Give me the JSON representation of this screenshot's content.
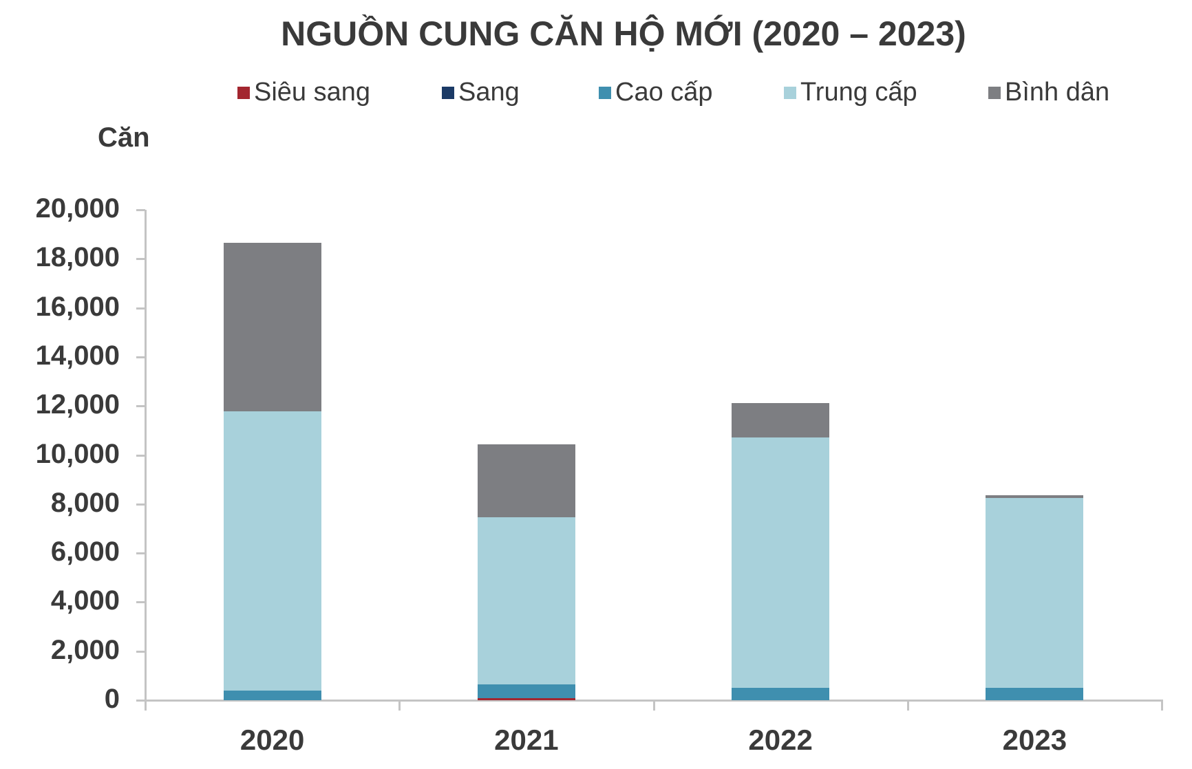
{
  "chart_data": {
    "type": "bar",
    "stacked": true,
    "title": "NGUỒN CUNG CĂN HỘ MỚI (2020 – 2023)",
    "ylabel": "Căn",
    "xlabel": "",
    "categories": [
      "2020",
      "2021",
      "2022",
      "2023"
    ],
    "series": [
      {
        "name": "Siêu sang",
        "color": "#a3262f",
        "values": [
          0,
          80,
          0,
          0
        ]
      },
      {
        "name": "Sang",
        "color": "#1b3a66",
        "values": [
          0,
          0,
          0,
          0
        ]
      },
      {
        "name": "Cao cấp",
        "color": "#3f8faf",
        "values": [
          390,
          570,
          500,
          500
        ]
      },
      {
        "name": "Trung cấp",
        "color": "#a8d1db",
        "values": [
          11390,
          6810,
          10220,
          7750
        ]
      },
      {
        "name": "Bình dân",
        "color": "#7d7e82",
        "values": [
          6870,
          2970,
          1400,
          110
        ]
      }
    ],
    "totals": [
      18650,
      10430,
      12120,
      8360
    ],
    "ylim": [
      0,
      20000
    ],
    "yticks": [
      "0",
      "2,000",
      "4,000",
      "6,000",
      "8,000",
      "10,000",
      "12,000",
      "14,000",
      "16,000",
      "18,000",
      "20,000"
    ],
    "grid": false,
    "legend_position": "top"
  },
  "title": "NGUỒN CUNG CĂN HỘ MỚI (2020 – 2023)",
  "unit_label": "Căn",
  "legend": [
    {
      "label": "Siêu sang",
      "color": "#a3262f"
    },
    {
      "label": "Sang",
      "color": "#1b3a66"
    },
    {
      "label": "Cao cấp",
      "color": "#3f8faf"
    },
    {
      "label": "Trung cấp",
      "color": "#a8d1db"
    },
    {
      "label": "Bình dân",
      "color": "#7d7e82"
    }
  ]
}
